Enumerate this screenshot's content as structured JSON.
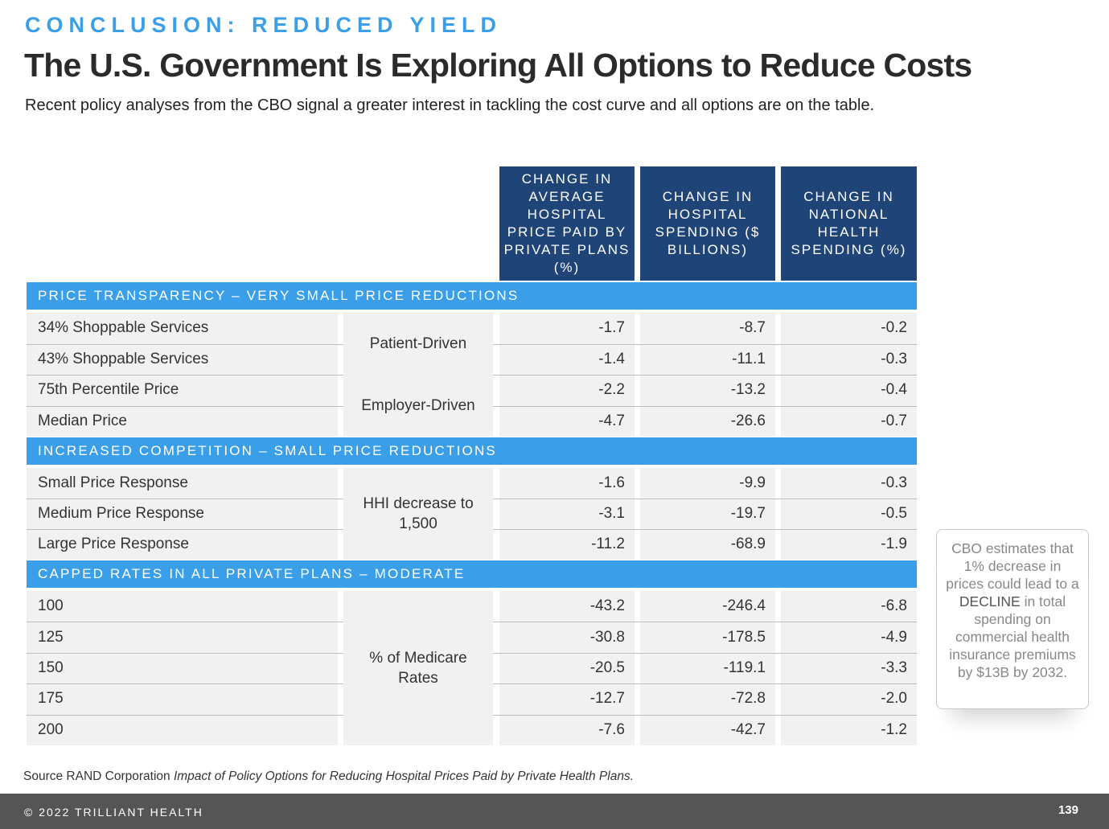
{
  "kicker": "CONCLUSION: REDUCED YIELD",
  "title": "The U.S. Government Is Exploring All Options to Reduce Costs",
  "subtitle": "Recent policy analyses from the CBO signal a greater interest in tackling the cost curve and all options are on the table.",
  "columns": [
    "CHANGE IN AVERAGE HOSPITAL PRICE PAID BY PRIVATE PLANS (%)",
    "CHANGE IN HOSPITAL SPENDING ($ BILLIONS)",
    "CHANGE IN NATIONAL HEALTH SPENDING (%)"
  ],
  "sections": [
    {
      "title": "PRICE TRANSPARENCY – VERY SMALL PRICE REDUCTIONS",
      "groups": [
        {
          "label": "Patient-Driven",
          "rows": [
            {
              "label": "34% Shoppable Services",
              "values": [
                "-1.7",
                "-8.7",
                "-0.2"
              ]
            },
            {
              "label": "43% Shoppable Services",
              "values": [
                "-1.4",
                "-11.1",
                "-0.3"
              ]
            }
          ]
        },
        {
          "label": "Employer-Driven",
          "rows": [
            {
              "label": "75th Percentile Price",
              "values": [
                "-2.2",
                "-13.2",
                "-0.4"
              ]
            },
            {
              "label": "Median Price",
              "values": [
                "-4.7",
                "-26.6",
                "-0.7"
              ]
            }
          ]
        }
      ]
    },
    {
      "title": "INCREASED COMPETITION – SMALL PRICE REDUCTIONS",
      "groups": [
        {
          "label": "HHI decrease to 1,500",
          "rows": [
            {
              "label": "Small Price Response",
              "values": [
                "-1.6",
                "-9.9",
                "-0.3"
              ]
            },
            {
              "label": "Medium Price Response",
              "values": [
                "-3.1",
                "-19.7",
                "-0.5"
              ]
            },
            {
              "label": "Large Price Response",
              "values": [
                "-11.2",
                "-68.9",
                "-1.9"
              ]
            }
          ]
        }
      ]
    },
    {
      "title": "CAPPED RATES IN ALL PRIVATE PLANS – MODERATE",
      "groups": [
        {
          "label": "% of Medicare Rates",
          "rows": [
            {
              "label": "100",
              "values": [
                "-43.2",
                "-246.4",
                "-6.8"
              ]
            },
            {
              "label": "125",
              "values": [
                "-30.8",
                "-178.5",
                "-4.9"
              ]
            },
            {
              "label": "150",
              "values": [
                "-20.5",
                "-119.1",
                "-3.3"
              ]
            },
            {
              "label": "175",
              "values": [
                "-12.7",
                "-72.8",
                "-2.0"
              ]
            },
            {
              "label": "200",
              "values": [
                "-7.6",
                "-42.7",
                "-1.2"
              ]
            }
          ]
        }
      ]
    }
  ],
  "note": {
    "pre": "CBO estimates that 1% decrease in prices could lead to a ",
    "emph": "DECLINE",
    "post": " in total spending on commercial health insurance premiums by $13B by 2032."
  },
  "source": {
    "prefix": "Source RAND Corporation ",
    "title": "Impact of Policy Options for Reducing Hospital Prices Paid by Private Health Plans."
  },
  "footer": {
    "copyright": "© 2022 TRILLIANT HEALTH",
    "page": "139"
  }
}
